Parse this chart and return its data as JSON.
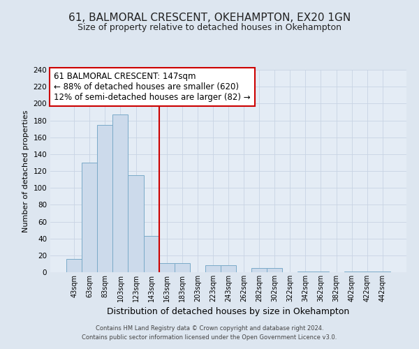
{
  "title": "61, BALMORAL CRESCENT, OKEHAMPTON, EX20 1GN",
  "subtitle": "Size of property relative to detached houses in Okehampton",
  "xlabel": "Distribution of detached houses by size in Okehampton",
  "ylabel": "Number of detached properties",
  "bar_labels": [
    "43sqm",
    "63sqm",
    "83sqm",
    "103sqm",
    "123sqm",
    "143sqm",
    "163sqm",
    "183sqm",
    "203sqm",
    "223sqm",
    "243sqm",
    "262sqm",
    "282sqm",
    "302sqm",
    "322sqm",
    "342sqm",
    "362sqm",
    "382sqm",
    "402sqm",
    "422sqm",
    "442sqm"
  ],
  "bar_values": [
    16,
    130,
    175,
    187,
    115,
    43,
    11,
    11,
    0,
    8,
    8,
    0,
    5,
    5,
    0,
    1,
    1,
    0,
    1,
    1,
    1
  ],
  "bar_color": "#ccdaeb",
  "bar_edgecolor": "#7aaac8",
  "bar_width": 1.0,
  "vline_color": "#cc0000",
  "vline_pos": 5.5,
  "ylim": [
    0,
    240
  ],
  "yticks": [
    0,
    20,
    40,
    60,
    80,
    100,
    120,
    140,
    160,
    180,
    200,
    220,
    240
  ],
  "annotation_title": "61 BALMORAL CRESCENT: 147sqm",
  "annotation_line1": "← 88% of detached houses are smaller (620)",
  "annotation_line2": "12% of semi-detached houses are larger (82) →",
  "annotation_box_facecolor": "#ffffff",
  "annotation_box_edgecolor": "#cc0000",
  "grid_color": "#c8d4e4",
  "background_color": "#dde6f0",
  "plot_facecolor": "#e4ecf5",
  "footer1": "Contains HM Land Registry data © Crown copyright and database right 2024.",
  "footer2": "Contains public sector information licensed under the Open Government Licence v3.0."
}
